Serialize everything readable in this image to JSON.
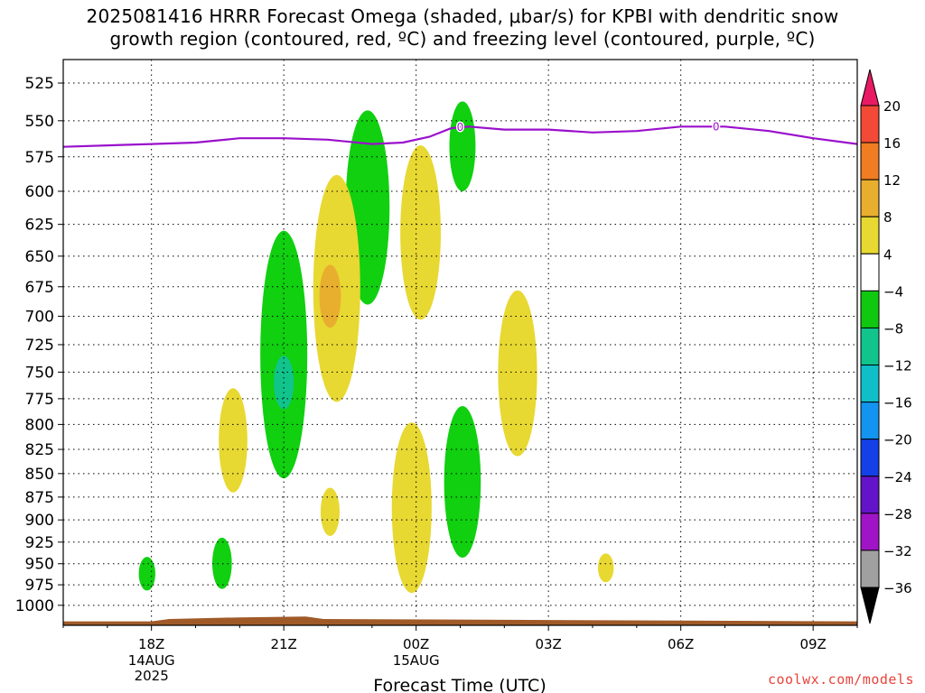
{
  "title_line1": "2025081416 HRRR Forecast Omega (shaded, μbar/s) for KPBI with dendritic snow",
  "title_line2": "growth region (contoured, red, ºC) and freezing level (contoured, purple, ºC)",
  "credit": "coolwx.com/models",
  "chart_data": {
    "type": "contour",
    "title": "2025081416 HRRR Forecast Omega (shaded, μbar/s) for KPBI with dendritic snow growth region (contoured, red, ºC) and freezing level (contoured, purple, ºC)",
    "xlabel": "Forecast Time (UTC)",
    "ylabel": "",
    "x_range_hours_from_18Z": [
      -2.0,
      16.0
    ],
    "x_ticks": [
      {
        "hour": 0,
        "label": "18Z",
        "sub": [
          "14AUG",
          "2025"
        ]
      },
      {
        "hour": 3,
        "label": "21Z",
        "sub": []
      },
      {
        "hour": 6,
        "label": "00Z",
        "sub": [
          "15AUG"
        ]
      },
      {
        "hour": 9,
        "label": "03Z",
        "sub": []
      },
      {
        "hour": 12,
        "label": "06Z",
        "sub": []
      },
      {
        "hour": 15,
        "label": "09Z",
        "sub": []
      }
    ],
    "y_axis": "pressure (hPa), log scale, inverted",
    "y_range": [
      1025,
      510
    ],
    "y_ticks": [
      525,
      550,
      575,
      600,
      625,
      650,
      675,
      700,
      725,
      750,
      775,
      800,
      825,
      850,
      875,
      900,
      925,
      950,
      975,
      1000
    ],
    "grid": true,
    "colorbar": {
      "labels": [
        "20",
        "16",
        "12",
        "8",
        "4",
        "−4",
        "−8",
        "−12",
        "−16",
        "−20",
        "−24",
        "−28",
        "−32",
        "−36"
      ],
      "colors": [
        "#e81a64",
        "#f24a36",
        "#f07d22",
        "#e8ae2e",
        "#e8d832",
        "#ffffff",
        "#10c810",
        "#10c48c",
        "#10bec8",
        "#1294f0",
        "#1440e8",
        "#6414c8",
        "#a014c8",
        "#a0a0a0",
        "#000000"
      ]
    },
    "omega_regions": [
      {
        "level": "-4 to -8",
        "color": "#10d010",
        "time_h": 3.0,
        "p_top": 630,
        "p_bottom": 855
      },
      {
        "level": "-8 to -12",
        "color": "#10c48c",
        "time_h": 3.0,
        "p_top": 735,
        "p_bottom": 785
      },
      {
        "level": "-4 to -8",
        "color": "#10d010",
        "time_h": 4.9,
        "p_top": 543,
        "p_bottom": 690
      },
      {
        "level": "-4 to -8",
        "color": "#10d010",
        "time_h": 7.05,
        "p_top": 537,
        "p_bottom": 600
      },
      {
        "level": "-4 to -8",
        "color": "#10d010",
        "time_h": 7.05,
        "p_top": 782,
        "p_bottom": 943
      },
      {
        "level": "-4 to -8",
        "color": "#10d010",
        "time_h": 1.6,
        "p_top": 920,
        "p_bottom": 980
      },
      {
        "level": "-4 to -8",
        "color": "#10d010",
        "time_h": -0.1,
        "p_top": 942,
        "p_bottom": 982
      },
      {
        "level": "4 to 8",
        "color": "#e8d832",
        "time_h": 1.85,
        "p_top": 765,
        "p_bottom": 870
      },
      {
        "level": "4 to 8",
        "color": "#e8d832",
        "time_h": 4.2,
        "p_top": 588,
        "p_bottom": 778
      },
      {
        "level": "8 to 12",
        "color": "#e8ae2e",
        "time_h": 4.05,
        "p_top": 657,
        "p_bottom": 710
      },
      {
        "level": "4 to 8",
        "color": "#e8d832",
        "time_h": 6.1,
        "p_top": 567,
        "p_bottom": 703
      },
      {
        "level": "4 to 8",
        "color": "#e8d832",
        "time_h": 8.3,
        "p_top": 678,
        "p_bottom": 832
      },
      {
        "level": "4 to 8",
        "color": "#e8d832",
        "time_h": 4.05,
        "p_top": 865,
        "p_bottom": 918
      },
      {
        "level": "4 to 8",
        "color": "#e8d832",
        "time_h": 5.9,
        "p_top": 798,
        "p_bottom": 985
      },
      {
        "level": "4 to 8",
        "color": "#e8d832",
        "time_h": 10.3,
        "p_top": 938,
        "p_bottom": 972
      }
    ],
    "freezing_level": {
      "label": "0",
      "label_hours": [
        7.0,
        12.8
      ],
      "points": [
        [
          -2.0,
          568
        ],
        [
          0.0,
          566
        ],
        [
          1.0,
          565
        ],
        [
          2.0,
          562
        ],
        [
          3.0,
          562
        ],
        [
          4.0,
          563
        ],
        [
          5.0,
          566
        ],
        [
          5.7,
          565
        ],
        [
          6.3,
          561
        ],
        [
          6.8,
          555
        ],
        [
          7.2,
          554
        ],
        [
          8.0,
          556
        ],
        [
          9.0,
          556
        ],
        [
          10.0,
          558
        ],
        [
          11.0,
          557
        ],
        [
          12.0,
          554
        ],
        [
          13.0,
          554
        ],
        [
          14.0,
          557
        ],
        [
          15.0,
          562
        ],
        [
          16.0,
          566
        ]
      ]
    },
    "surface": {
      "color": "#a05a28",
      "points": [
        [
          -2.0,
          1020
        ],
        [
          0.0,
          1020
        ],
        [
          0.4,
          1017
        ],
        [
          2.0,
          1015
        ],
        [
          3.5,
          1014
        ],
        [
          3.9,
          1017
        ],
        [
          16.0,
          1020
        ]
      ]
    }
  }
}
